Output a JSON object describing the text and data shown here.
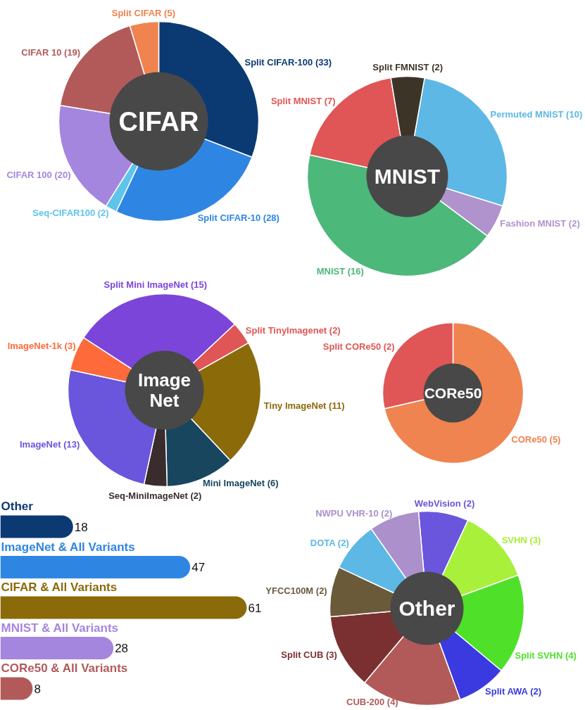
{
  "chart_data": [
    {
      "type": "donut",
      "title": "CIFAR",
      "categories": [
        "Split CIFAR-100 (33)",
        "Split CIFAR-10 (28)",
        "Seq-CIFAR100 (2)",
        "CIFAR 100 (20)",
        "CIFAR 10 (19)",
        "Split CIFAR (5)"
      ],
      "values": [
        33,
        28,
        2,
        20,
        19,
        5
      ],
      "colors": [
        "#0b3a73",
        "#2f86e2",
        "#5ec4ec",
        "#a586df",
        "#b25a5a",
        "#ef8450"
      ]
    },
    {
      "type": "donut",
      "title": "MNIST",
      "categories": [
        "Permuted MNIST (10)",
        "Fashion MNIST (2)",
        "MNIST (16)",
        "Split MNIST (7)",
        "Split FMNIST (2)"
      ],
      "values": [
        10,
        2,
        16,
        7,
        2
      ],
      "colors": [
        "#5db8e6",
        "#b093cc",
        "#4cb87a",
        "#e05555",
        "#3d3428"
      ]
    },
    {
      "type": "donut",
      "title": "Image\nNet",
      "categories": [
        "Split Mini ImageNet (15)",
        "Split TinyImagenet (2)",
        "Tiny ImageNet (11)",
        "Mini ImageNet (6)",
        "Seq-MiniImageNet (2)",
        "ImageNet (13)",
        "ImageNet-1k (3)"
      ],
      "values": [
        15,
        2,
        11,
        6,
        2,
        13,
        3
      ],
      "colors": [
        "#7b45d9",
        "#e05555",
        "#8b6a0a",
        "#17465e",
        "#3a2c2c",
        "#6a55dd",
        "#ff6a3a"
      ]
    },
    {
      "type": "donut",
      "title": "CORe50",
      "categories": [
        "CORe50 (5)",
        "Split CORe50 (2)"
      ],
      "values": [
        5,
        2
      ],
      "colors": [
        "#ef8450",
        "#e05555"
      ]
    },
    {
      "type": "bar",
      "orientation": "horizontal",
      "data_labels": true,
      "categories": [
        "Other",
        "ImageNet & All Variants",
        "CIFAR & All Variants",
        "MNIST & All Variants",
        "CORe50 & All Variants"
      ],
      "values": [
        18,
        47,
        61,
        28,
        8
      ],
      "colors": [
        "#0b3a73",
        "#2f86e2",
        "#8b6a0a",
        "#a586df",
        "#b25a5a"
      ]
    },
    {
      "type": "donut",
      "title": "Other",
      "categories": [
        "WebVision (2)",
        "SVHN (3)",
        "Split SVHN (4)",
        "Split AWA (2)",
        "CUB-200 (4)",
        "Split CUB (3)",
        "YFCC100M (2)",
        "DOTA (2)",
        "NWPU VHR-10 (2)"
      ],
      "values": [
        2,
        3,
        4,
        2,
        4,
        3,
        2,
        2,
        2
      ],
      "colors": [
        "#6a55dd",
        "#a8f03a",
        "#4fe02a",
        "#3a3ae0",
        "#b25a5a",
        "#7a3030",
        "#6b5a3a",
        "#5db8e6",
        "#ab90cc"
      ]
    }
  ]
}
